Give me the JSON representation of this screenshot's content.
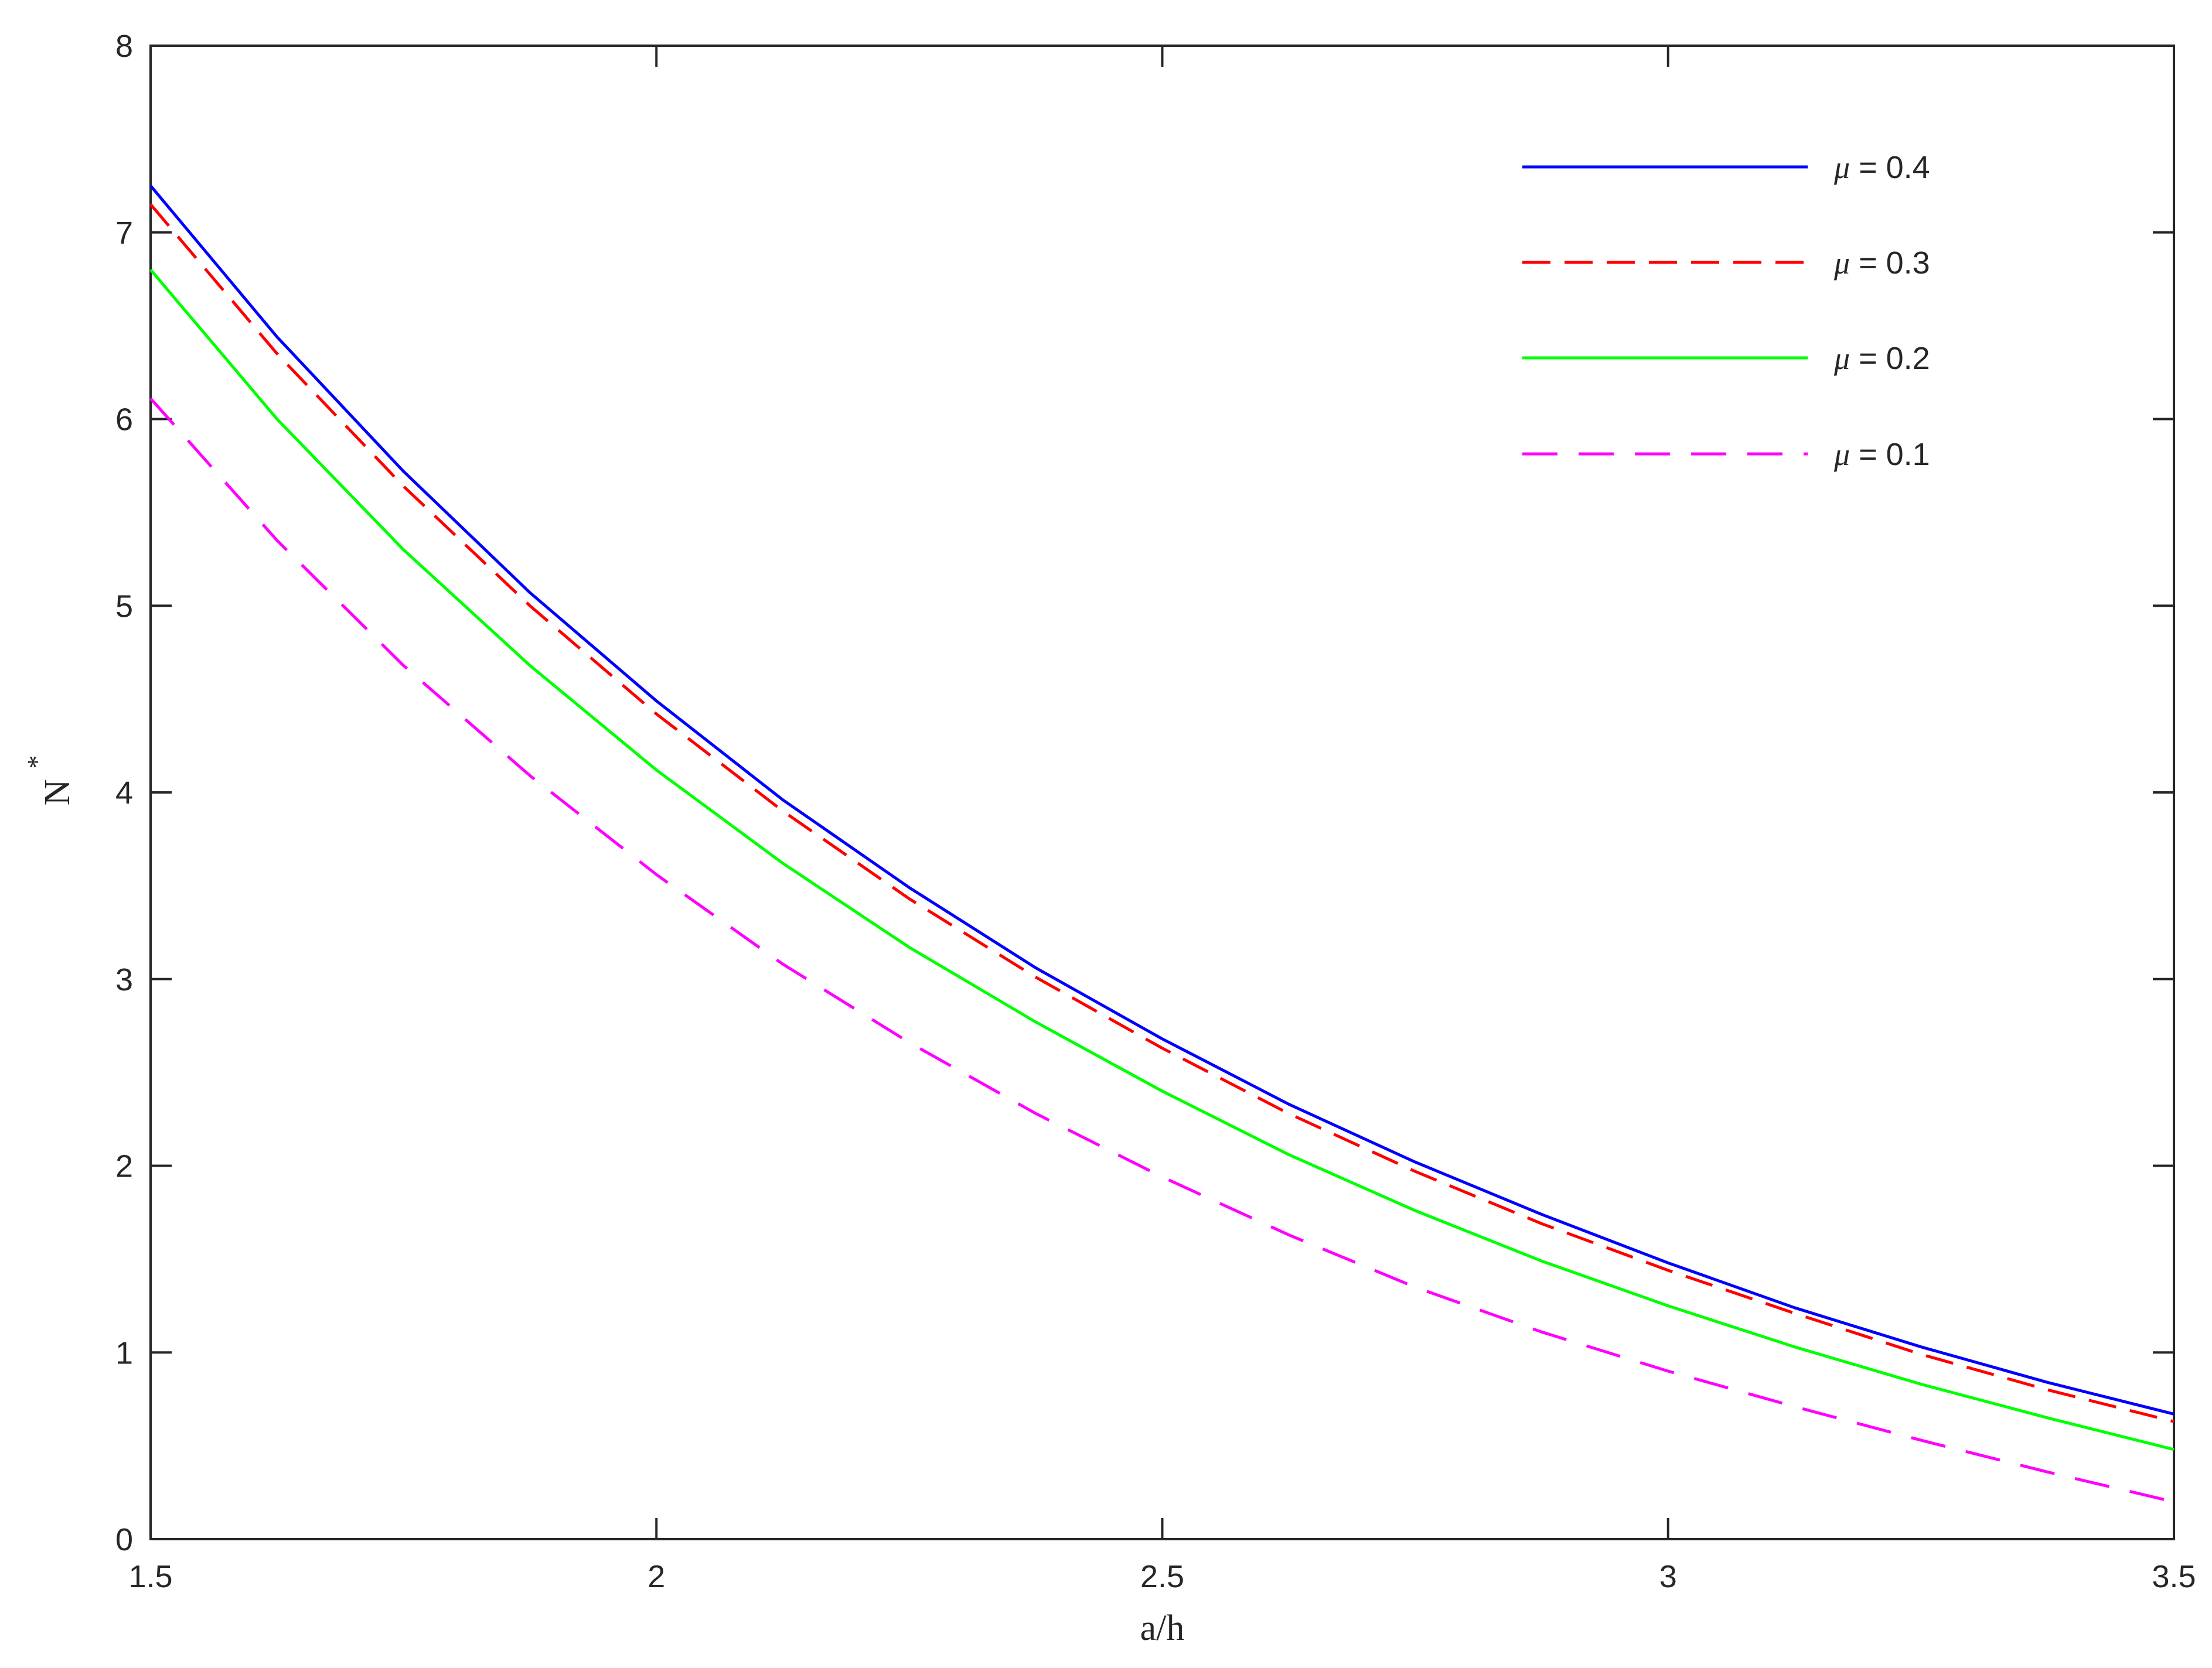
{
  "chart_data": {
    "type": "line",
    "title": "",
    "xlabel": "a/h",
    "ylabel": "N",
    "ylabel_superscript": "*",
    "xlim": [
      1.5,
      3.5
    ],
    "ylim": [
      0,
      8
    ],
    "x_ticks": [
      1.5,
      2,
      2.5,
      3,
      3.5
    ],
    "x_tick_labels": [
      "1.5",
      "2",
      "2.5",
      "3",
      "3.5"
    ],
    "y_ticks": [
      0,
      1,
      2,
      3,
      4,
      5,
      6,
      7,
      8
    ],
    "y_tick_labels": [
      "0",
      "1",
      "2",
      "3",
      "4",
      "5",
      "6",
      "7",
      "8"
    ],
    "grid": false,
    "legend_position": "top-right",
    "x": [
      1.5,
      1.625,
      1.75,
      1.875,
      2.0,
      2.125,
      2.25,
      2.375,
      2.5,
      2.625,
      2.75,
      2.875,
      3.0,
      3.125,
      3.25,
      3.375,
      3.5
    ],
    "series": [
      {
        "name": "μ = 0.4",
        "mu_symbol": "μ",
        "label_value": " = 0.4",
        "color": "#0000ff",
        "dash": "solid",
        "values": [
          7.25,
          6.44,
          5.72,
          5.07,
          4.49,
          3.96,
          3.49,
          3.06,
          2.68,
          2.33,
          2.02,
          1.74,
          1.48,
          1.24,
          1.03,
          0.84,
          0.67
        ]
      },
      {
        "name": "μ = 0.3",
        "mu_symbol": "μ",
        "label_value": " = 0.3",
        "color": "#ff0000",
        "dash": "dashed",
        "values": [
          7.15,
          6.35,
          5.64,
          5.0,
          4.42,
          3.9,
          3.43,
          3.01,
          2.63,
          2.28,
          1.97,
          1.69,
          1.44,
          1.21,
          0.99,
          0.8,
          0.63
        ]
      },
      {
        "name": "μ = 0.2",
        "mu_symbol": "μ",
        "label_value": " = 0.2",
        "color": "#00ff00",
        "dash": "solid",
        "values": [
          6.8,
          6.0,
          5.3,
          4.68,
          4.12,
          3.62,
          3.17,
          2.77,
          2.4,
          2.06,
          1.76,
          1.49,
          1.25,
          1.03,
          0.83,
          0.65,
          0.48
        ]
      },
      {
        "name": "μ = 0.1",
        "mu_symbol": "μ",
        "label_value": " = 0.1",
        "color": "#ff00ff",
        "dash": "longdash",
        "values": [
          6.11,
          5.35,
          4.68,
          4.09,
          3.56,
          3.08,
          2.66,
          2.28,
          1.94,
          1.63,
          1.35,
          1.11,
          0.9,
          0.71,
          0.53,
          0.36,
          0.2
        ]
      }
    ]
  }
}
